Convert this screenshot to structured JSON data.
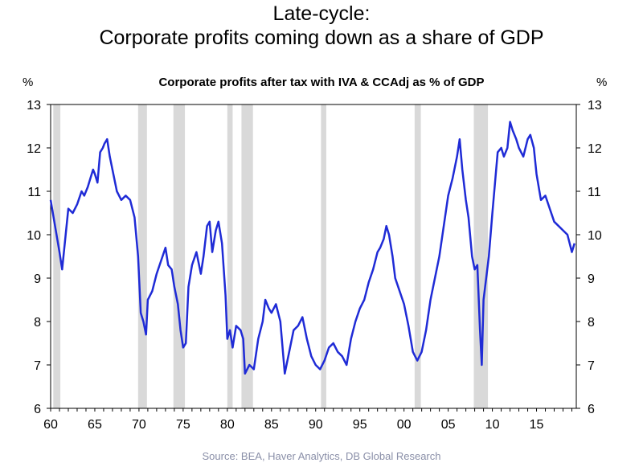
{
  "title_line1": "Late-cycle:",
  "title_line2": "Corporate profits coming down as a share of GDP",
  "source": "Source:  BEA, Haver Analytics, DB Global  Research",
  "chart_data": {
    "type": "line",
    "title": "Corporate profits after tax with IVA & CCAdj as  % of GDP",
    "ylabel_left": "%",
    "ylabel_right": "%",
    "xlabel": "",
    "xlim": [
      1960,
      2019.5
    ],
    "ylim": [
      6,
      13
    ],
    "yticks": [
      6,
      7,
      8,
      9,
      10,
      11,
      12,
      13
    ],
    "xticks": [
      {
        "value": 1960,
        "label": "60"
      },
      {
        "value": 1965,
        "label": "65"
      },
      {
        "value": 1970,
        "label": "70"
      },
      {
        "value": 1975,
        "label": "75"
      },
      {
        "value": 1980,
        "label": "80"
      },
      {
        "value": 1985,
        "label": "85"
      },
      {
        "value": 1990,
        "label": "90"
      },
      {
        "value": 1995,
        "label": "95"
      },
      {
        "value": 2000,
        "label": "00"
      },
      {
        "value": 2005,
        "label": "05"
      },
      {
        "value": 2010,
        "label": "10"
      },
      {
        "value": 2015,
        "label": "15"
      }
    ],
    "line_color": "#1f2bd6",
    "recession_color": "#d9d9d9",
    "recessions": [
      [
        1960.3,
        1961.1
      ],
      [
        1969.9,
        1970.9
      ],
      [
        1973.9,
        1975.2
      ],
      [
        1980.0,
        1980.6
      ],
      [
        1981.6,
        1982.9
      ],
      [
        1990.6,
        1991.2
      ],
      [
        2001.2,
        2001.9
      ],
      [
        2007.9,
        2009.5
      ]
    ],
    "series": [
      {
        "x": [
          1960.0,
          1960.5,
          1961.0,
          1961.3,
          1961.7,
          1962.0,
          1962.5,
          1963.0,
          1963.5,
          1963.8,
          1964.2,
          1964.5,
          1964.8,
          1965.0,
          1965.3,
          1965.6,
          1965.9,
          1966.1,
          1966.4,
          1966.7,
          1967.0,
          1967.5,
          1968.0,
          1968.5,
          1969.0,
          1969.5,
          1969.9,
          1970.2,
          1970.5,
          1970.8,
          1971.0,
          1971.5,
          1972.0,
          1972.5,
          1973.0,
          1973.3,
          1973.7,
          1974.0,
          1974.4,
          1974.7,
          1975.0,
          1975.3,
          1975.6,
          1976.0,
          1976.5,
          1977.0,
          1977.3,
          1977.7,
          1978.0,
          1978.3,
          1978.7,
          1979.0,
          1979.4,
          1979.8,
          1980.0,
          1980.3,
          1980.6,
          1981.0,
          1981.5,
          1981.8,
          1982.0,
          1982.5,
          1983.0,
          1983.5,
          1984.0,
          1984.3,
          1984.7,
          1985.0,
          1985.5,
          1986.0,
          1986.5,
          1987.0,
          1987.5,
          1988.0,
          1988.5,
          1989.0,
          1989.5,
          1990.0,
          1990.5,
          1991.0,
          1991.5,
          1992.0,
          1992.5,
          1993.0,
          1993.5,
          1994.0,
          1994.5,
          1995.0,
          1995.5,
          1996.0,
          1996.5,
          1997.0,
          1997.3,
          1997.7,
          1998.0,
          1998.3,
          1998.7,
          1999.0,
          1999.5,
          2000.0,
          2000.5,
          2001.0,
          2001.5,
          2002.0,
          2002.5,
          2003.0,
          2003.5,
          2004.0,
          2004.5,
          2005.0,
          2005.5,
          2006.0,
          2006.3,
          2006.6,
          2007.0,
          2007.3,
          2007.7,
          2008.0,
          2008.3,
          2008.6,
          2008.8,
          2009.0,
          2009.3,
          2009.6,
          2010.0,
          2010.3,
          2010.6,
          2011.0,
          2011.3,
          2011.7,
          2012.0,
          2012.3,
          2012.7,
          2013.0,
          2013.5,
          2014.0,
          2014.3,
          2014.7,
          2015.0,
          2015.5,
          2016.0,
          2016.5,
          2017.0,
          2017.5,
          2018.0,
          2018.5,
          2019.0,
          2019.3
        ],
        "y": [
          10.8,
          10.2,
          9.6,
          9.2,
          10.0,
          10.6,
          10.5,
          10.7,
          11.0,
          10.9,
          11.1,
          11.3,
          11.5,
          11.4,
          11.2,
          11.9,
          12.0,
          12.1,
          12.2,
          11.8,
          11.5,
          11.0,
          10.8,
          10.9,
          10.8,
          10.4,
          9.5,
          8.2,
          8.0,
          7.7,
          8.5,
          8.7,
          9.1,
          9.4,
          9.7,
          9.3,
          9.2,
          8.8,
          8.4,
          7.8,
          7.4,
          7.5,
          8.8,
          9.3,
          9.6,
          9.1,
          9.5,
          10.2,
          10.3,
          9.6,
          10.1,
          10.3,
          9.8,
          8.6,
          7.6,
          7.8,
          7.4,
          7.9,
          7.8,
          7.6,
          6.8,
          7.0,
          6.9,
          7.6,
          8.0,
          8.5,
          8.3,
          8.2,
          8.4,
          8.0,
          6.8,
          7.3,
          7.8,
          7.9,
          8.1,
          7.6,
          7.2,
          7.0,
          6.9,
          7.1,
          7.4,
          7.5,
          7.3,
          7.2,
          7.0,
          7.6,
          8.0,
          8.3,
          8.5,
          8.9,
          9.2,
          9.6,
          9.7,
          9.9,
          10.2,
          10.0,
          9.5,
          9.0,
          8.7,
          8.4,
          7.9,
          7.3,
          7.1,
          7.3,
          7.8,
          8.5,
          9.0,
          9.5,
          10.2,
          10.9,
          11.3,
          11.8,
          12.2,
          11.5,
          10.8,
          10.4,
          9.5,
          9.2,
          9.3,
          7.8,
          7.0,
          8.5,
          9.0,
          9.5,
          10.5,
          11.2,
          11.9,
          12.0,
          11.8,
          12.0,
          12.6,
          12.4,
          12.2,
          12.0,
          11.8,
          12.2,
          12.3,
          12.0,
          11.4,
          10.8,
          10.9,
          10.6,
          10.3,
          10.2,
          10.1,
          10.0,
          9.6,
          9.8
        ]
      }
    ]
  }
}
